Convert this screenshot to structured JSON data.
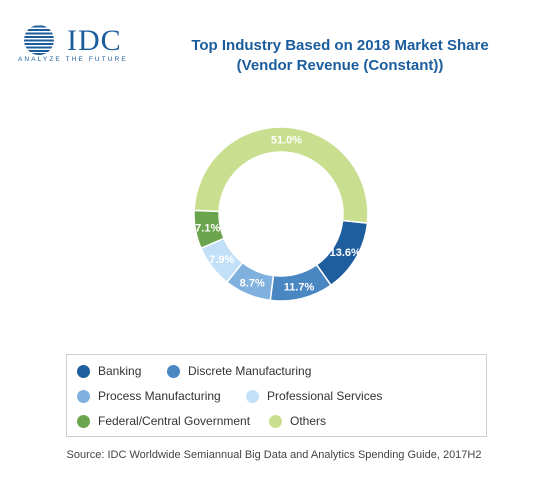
{
  "logo": {
    "name": "IDC",
    "tagline": "ANALYZE THE FUTURE"
  },
  "title_line1": "Top Industry Based on 2018 Market Share",
  "title_line2": "(Vendor Revenue (Constant))",
  "source": "Source: IDC Worldwide Semiannual Big Data and Analytics Spending Guide, 2017H2",
  "chart_data": {
    "type": "pie",
    "variant": "donut",
    "title": "Top Industry Based on 2018 Market Share (Vendor Revenue (Constant))",
    "unit": "%",
    "legend_position": "bottom",
    "slices": [
      {
        "name": "Banking",
        "value": 13.6,
        "label": "13.6%",
        "color": "#1f5e9e"
      },
      {
        "name": "Discrete Manufacturing",
        "value": 11.7,
        "label": "11.7%",
        "color": "#4a86c2"
      },
      {
        "name": "Process Manufacturing",
        "value": 8.7,
        "label": "8.7%",
        "color": "#7fb0de"
      },
      {
        "name": "Professional Services",
        "value": 7.9,
        "label": "7.9%",
        "color": "#c2e0f8"
      },
      {
        "name": "Federal/Central Government",
        "value": 7.1,
        "label": "7.1%",
        "color": "#6aa54e"
      },
      {
        "name": "Others",
        "value": 51.0,
        "label": "51.0%",
        "color": "#c9df8f"
      }
    ]
  }
}
